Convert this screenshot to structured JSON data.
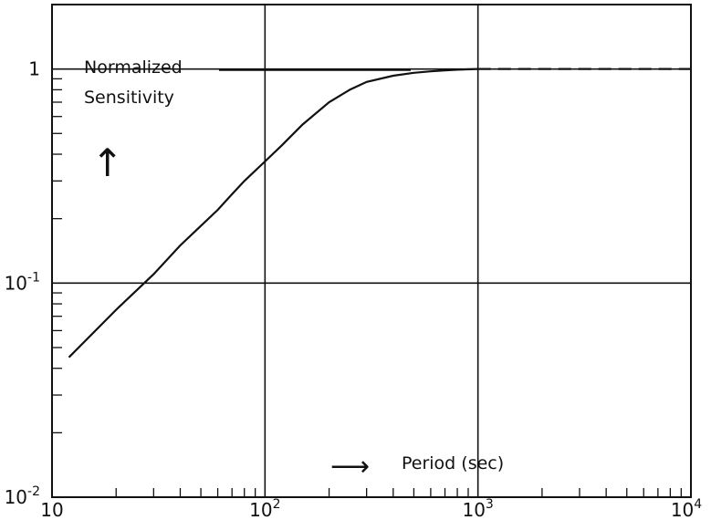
{
  "chart_data": {
    "type": "line",
    "title": "",
    "xscale": "log",
    "yscale": "log",
    "xlim": [
      10,
      10000
    ],
    "ylim": [
      0.01,
      2
    ],
    "grid": true,
    "xlabel": "Period (sec)",
    "ylabel": "Normalized Sensitivity",
    "x_ticks": [
      {
        "value": 10,
        "base": "10",
        "exp": ""
      },
      {
        "value": 100,
        "base": "10",
        "exp": "2"
      },
      {
        "value": 1000,
        "base": "10",
        "exp": "3"
      },
      {
        "value": 10000,
        "base": "10",
        "exp": "4"
      }
    ],
    "y_ticks": [
      {
        "value": 0.01,
        "base": "10",
        "exp": "-2"
      },
      {
        "value": 0.1,
        "base": "10",
        "exp": "-1"
      },
      {
        "value": 1,
        "base": "1",
        "exp": ""
      }
    ],
    "series": [
      {
        "style": "solid",
        "x": [
          12,
          20,
          30,
          40,
          50,
          60,
          70,
          80,
          100,
          120,
          150,
          200,
          250,
          300,
          400,
          500,
          600,
          700,
          800,
          1000
        ],
        "y": [
          0.045,
          0.075,
          0.11,
          0.15,
          0.185,
          0.22,
          0.26,
          0.3,
          0.37,
          0.44,
          0.55,
          0.7,
          0.8,
          0.87,
          0.93,
          0.96,
          0.975,
          0.985,
          0.993,
          1.0
        ]
      },
      {
        "style": "dashed",
        "x": [
          1000,
          10000
        ],
        "y": [
          1.0,
          1.0
        ]
      }
    ],
    "annotations": {
      "arrow_up": "↑",
      "arrow_right": "⟶"
    }
  }
}
